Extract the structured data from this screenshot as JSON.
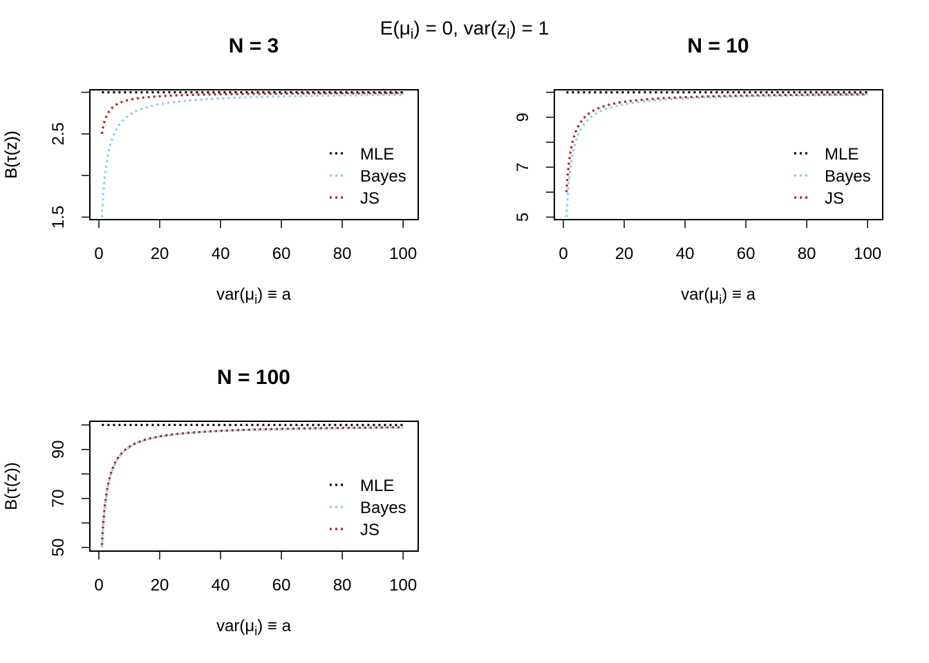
{
  "figure": {
    "title_main": "E(μ",
    "title_sub1": "i",
    "title_mid": ") = 0, var(z",
    "title_sub2": "i",
    "title_end": ") = 1"
  },
  "chart_data": [
    {
      "type": "line",
      "title": "N =  3",
      "xlabel": "var(μi) ≡ a",
      "ylabel": "B(τ(z))",
      "xlim": [
        -2.96,
        104.96
      ],
      "ylim": [
        1.47,
        3.03
      ],
      "xticks": [
        0,
        20,
        40,
        60,
        80,
        100
      ],
      "yticks": [
        1.5,
        2,
        2.5,
        3
      ],
      "ytick_labels": [
        "1.5",
        "",
        "2.5",
        ""
      ],
      "legend": {
        "position": "right",
        "entries": [
          "MLE",
          "Bayes",
          "JS"
        ]
      },
      "series": [
        {
          "name": "MLE",
          "color": "#000000",
          "dash": "dotted",
          "formula": "mle",
          "value": 3
        },
        {
          "name": "Bayes",
          "color": "#87CEEB",
          "dash": "dotted",
          "formula": "bayes"
        },
        {
          "name": "JS",
          "color": "#B22222",
          "dash": "dotted",
          "formula": "js"
        }
      ],
      "N": 3
    },
    {
      "type": "line",
      "title": "N =  10",
      "xlabel": "var(μi) ≡ a",
      "ylabel": "B(τ(z))",
      "xlim": [
        -2.96,
        104.96
      ],
      "ylim": [
        4.9,
        10.1
      ],
      "xticks": [
        0,
        20,
        40,
        60,
        80,
        100
      ],
      "yticks": [
        5,
        6,
        7,
        8,
        9,
        10
      ],
      "ytick_labels": [
        "5",
        "",
        "7",
        "",
        "9",
        ""
      ],
      "legend": {
        "position": "right",
        "entries": [
          "MLE",
          "Bayes",
          "JS"
        ]
      },
      "series": [
        {
          "name": "MLE",
          "color": "#000000",
          "dash": "dotted",
          "formula": "mle",
          "value": 10
        },
        {
          "name": "Bayes",
          "color": "#87CEEB",
          "dash": "dotted",
          "formula": "bayes"
        },
        {
          "name": "JS",
          "color": "#B22222",
          "dash": "dotted",
          "formula": "js"
        }
      ],
      "N": 10
    },
    {
      "type": "line",
      "title": "N =  100",
      "xlabel": "var(μi) ≡ a",
      "ylabel": "B(τ(z))",
      "xlim": [
        -2.96,
        104.96
      ],
      "ylim": [
        48.5,
        101.5
      ],
      "xticks": [
        0,
        20,
        40,
        60,
        80,
        100
      ],
      "yticks": [
        50,
        60,
        70,
        80,
        90,
        100
      ],
      "ytick_labels": [
        "50",
        "",
        "70",
        "",
        "90",
        ""
      ],
      "legend": {
        "position": "right",
        "entries": [
          "MLE",
          "Bayes",
          "JS"
        ]
      },
      "series": [
        {
          "name": "MLE",
          "color": "#000000",
          "dash": "dotted",
          "formula": "mle",
          "value": 100
        },
        {
          "name": "Bayes",
          "color": "#87CEEB",
          "dash": "dotted",
          "formula": "bayes"
        },
        {
          "name": "JS",
          "color": "#B22222",
          "dash": "dotted",
          "formula": "js"
        }
      ],
      "N": 100
    }
  ]
}
